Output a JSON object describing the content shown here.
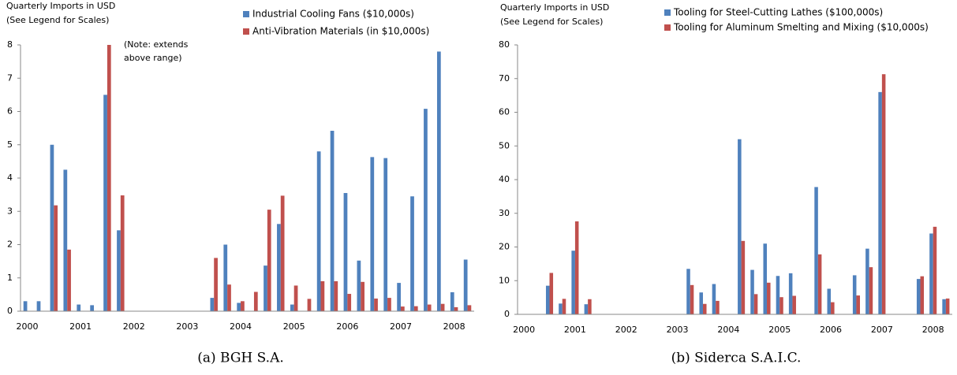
{
  "chart_data": [
    {
      "type": "bar",
      "title": "Quarterly Imports in USD",
      "subtitle": "(See Legend for Scales)",
      "caption": "(a) BGH S.A.",
      "annotation_lines": [
        "(Note: extends",
        "above range)"
      ],
      "categories": [
        "2000",
        null,
        null,
        null,
        "2001",
        null,
        null,
        null,
        "2002",
        null,
        null,
        null,
        "2003",
        null,
        null,
        null,
        "2004",
        null,
        null,
        null,
        "2005",
        null,
        null,
        null,
        "2006",
        null,
        null,
        null,
        "2007",
        null,
        null,
        null,
        "2008",
        null
      ],
      "series": [
        {
          "name": "Industrial Cooling Fans ($10,000s)",
          "color": "#4f81bd",
          "values": [
            0.3,
            0.3,
            5.0,
            4.25,
            0.2,
            0.18,
            6.5,
            2.43,
            0,
            0,
            0,
            0,
            0,
            0,
            0.4,
            2.0,
            0.25,
            0,
            1.37,
            2.62,
            0.2,
            0,
            4.8,
            5.42,
            3.55,
            1.52,
            4.63,
            4.6,
            0.85,
            3.45,
            6.08,
            7.8,
            0.57,
            1.55
          ]
        },
        {
          "name": "Anti-Vibration Materials (in $10,000s)",
          "color": "#c0504d",
          "values": [
            0,
            0,
            3.18,
            1.85,
            0,
            0,
            8,
            3.48,
            0,
            0,
            0,
            0,
            0,
            0,
            1.6,
            0.8,
            0.3,
            0.58,
            3.05,
            3.47,
            0.77,
            0.37,
            0.9,
            0.9,
            0.52,
            0.88,
            0.38,
            0.4,
            0.14,
            0.15,
            0.2,
            0.22,
            0.12,
            0.18
          ]
        }
      ],
      "ylim": [
        0,
        8
      ],
      "yticks": [
        0,
        1,
        2,
        3,
        4,
        5,
        6,
        7,
        8
      ],
      "grid": false
    },
    {
      "type": "bar",
      "title": "Quarterly Imports in USD",
      "subtitle": "(See Legend for Scales)",
      "caption": "(b) Siderca S.A.I.C.",
      "categories": [
        "2000",
        null,
        null,
        null,
        "2001",
        null,
        null,
        null,
        "2002",
        null,
        null,
        null,
        "2003",
        null,
        null,
        null,
        "2004",
        null,
        null,
        null,
        "2005",
        null,
        null,
        null,
        "2006",
        null,
        null,
        null,
        "2007",
        null,
        null,
        null,
        "2008",
        null
      ],
      "series": [
        {
          "name": "Tooling for Steel-Cutting Lathes ($100,000s)",
          "color": "#4f81bd",
          "values": [
            0,
            0,
            8.5,
            3.2,
            18.9,
            3.0,
            0,
            0,
            0,
            0,
            0,
            0,
            0,
            13.5,
            6.5,
            9.0,
            0,
            52,
            13.2,
            21,
            11.4,
            12.2,
            0,
            37.8,
            7.6,
            0,
            11.6,
            19.5,
            66,
            0,
            0,
            10.5,
            24,
            4.5
          ]
        },
        {
          "name": "Tooling for Aluminum Smelting and Mixing ($10,000s)",
          "color": "#c0504d",
          "values": [
            0,
            0,
            12.3,
            4.6,
            27.6,
            4.5,
            0,
            0,
            0,
            0,
            0,
            0,
            0,
            8.7,
            3.1,
            4.0,
            0,
            21.8,
            6.0,
            9.4,
            5.1,
            5.5,
            0,
            17.8,
            3.6,
            0,
            5.6,
            14,
            71.3,
            0,
            0,
            11.3,
            26,
            4.7
          ]
        }
      ],
      "ylim": [
        0,
        80
      ],
      "yticks": [
        0,
        10,
        20,
        30,
        40,
        50,
        60,
        70,
        80
      ],
      "grid": false
    }
  ]
}
